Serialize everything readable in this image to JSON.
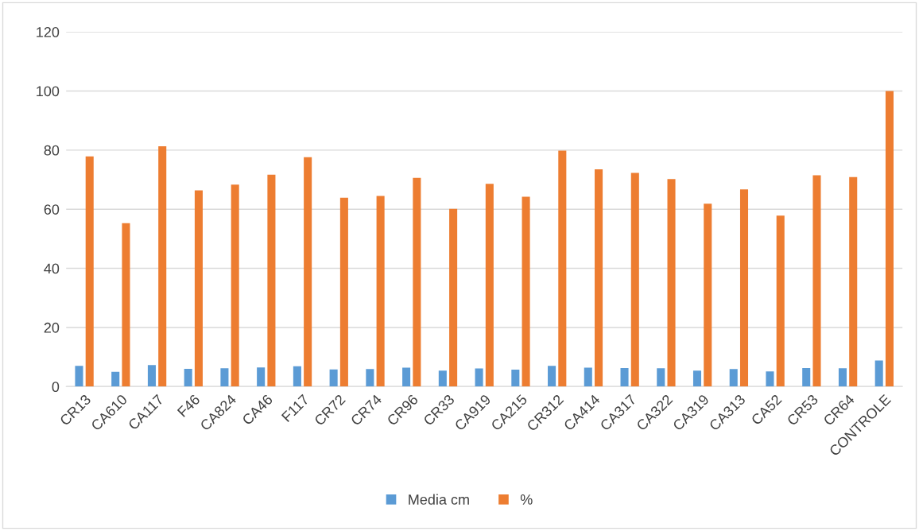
{
  "chart_data": {
    "type": "bar",
    "categories": [
      "CR13",
      "CA610",
      "CA117",
      "F46",
      "CA824",
      "CA46",
      "F117",
      "CR72",
      "CR74",
      "CR96",
      "CR33",
      "CA919",
      "CA215",
      "CR312",
      "CA414",
      "CA317",
      "CA322",
      "CA319",
      "CA313",
      "CA52",
      "CR53",
      "CR64",
      "CONTROLE"
    ],
    "series": [
      {
        "name": "Media cm",
        "color": "#5b9bd5",
        "values": [
          7.0,
          5.0,
          7.3,
          6.0,
          6.2,
          6.5,
          6.9,
          5.8,
          5.9,
          6.4,
          5.4,
          6.1,
          5.7,
          7.0,
          6.4,
          6.3,
          6.2,
          5.4,
          5.9,
          5.1,
          6.3,
          6.2,
          8.8
        ]
      },
      {
        "name": "%",
        "color": "#ed7d31",
        "values": [
          77.9,
          55.3,
          81.3,
          66.4,
          68.3,
          71.7,
          77.6,
          63.9,
          64.5,
          70.6,
          60.1,
          68.6,
          64.2,
          79.8,
          73.5,
          72.3,
          70.2,
          61.9,
          66.7,
          57.8,
          71.5,
          70.9,
          100
        ]
      }
    ],
    "ylim": [
      0,
      120
    ],
    "yticks": [
      0,
      20,
      40,
      60,
      80,
      100,
      120
    ],
    "grid": "y",
    "legend": "bottom"
  }
}
